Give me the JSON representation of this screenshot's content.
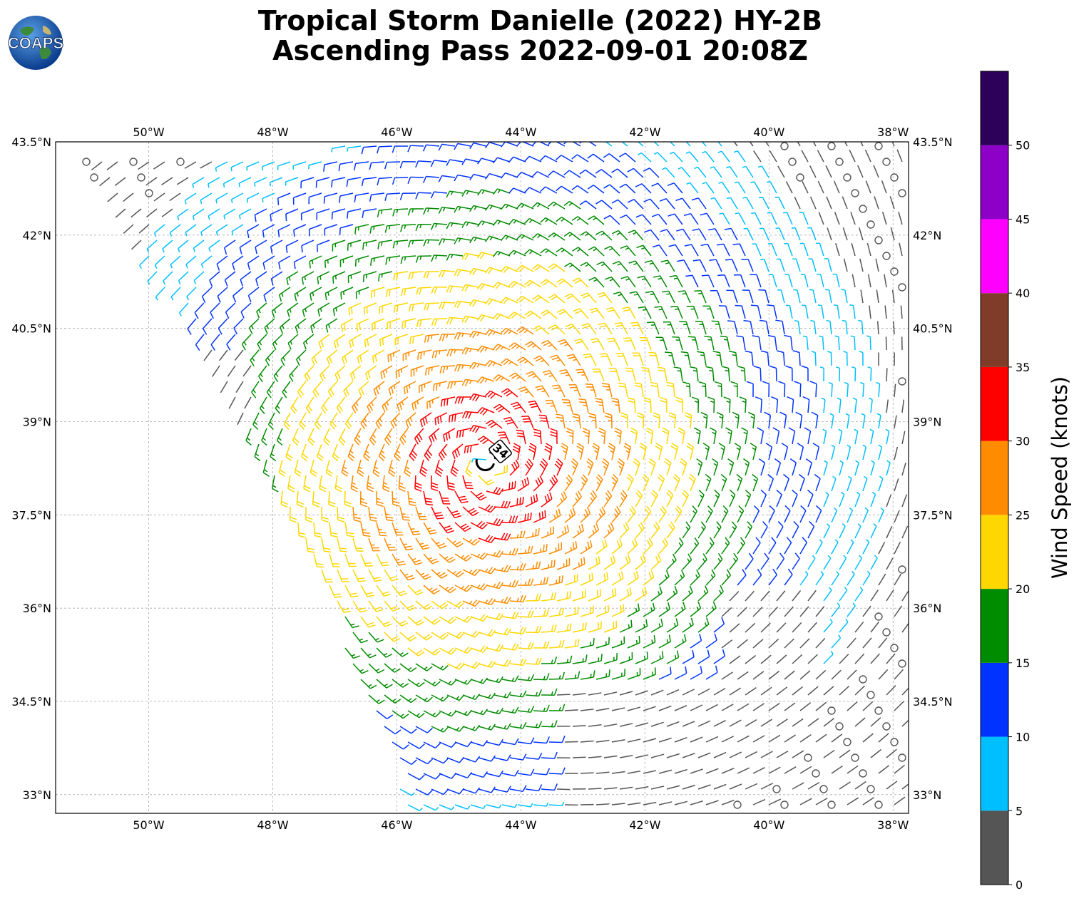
{
  "header": {
    "title_line1": "Tropical Storm Danielle (2022) HY-2B",
    "title_line2": "Ascending Pass 2022-09-01 20:08Z",
    "logo_text": "COAPS"
  },
  "map": {
    "lon_range": [
      -51.5,
      -37.75
    ],
    "lat_range": [
      32.7,
      43.5
    ],
    "lon_ticks": [
      "50°W",
      "48°W",
      "46°W",
      "44°W",
      "42°W",
      "40°W",
      "38°W"
    ],
    "lon_tick_values": [
      -50,
      -48,
      -46,
      -44,
      -42,
      -40,
      -38
    ],
    "lat_ticks": [
      "43.5°N",
      "42°N",
      "40.5°N",
      "39°N",
      "37.5°N",
      "36°N",
      "34.5°N",
      "33°N"
    ],
    "lat_tick_values": [
      43.5,
      42,
      40.5,
      39,
      37.5,
      36,
      34.5,
      33
    ],
    "gridlines": true,
    "storm_center_label": "34",
    "storm_center": {
      "lon": -44.55,
      "lat": 38.35
    },
    "pass_swath_corners": [
      [
        -51.2,
        43.4
      ],
      [
        -48.8,
        39.7
      ],
      [
        -46.0,
        33.5
      ],
      [
        -46.0,
        32.7
      ],
      [
        -37.75,
        32.7
      ],
      [
        -37.75,
        43.5
      ]
    ]
  },
  "colorbar": {
    "label": "Wind Speed (knots)",
    "ticks": [
      "0",
      "5",
      "10",
      "15",
      "20",
      "25",
      "30",
      "35",
      "40",
      "45",
      "50"
    ],
    "bins": [
      {
        "min": 0,
        "max": 5,
        "color": "#555555"
      },
      {
        "min": 5,
        "max": 10,
        "color": "#00bfff"
      },
      {
        "min": 10,
        "max": 15,
        "color": "#0033ff"
      },
      {
        "min": 15,
        "max": 20,
        "color": "#008c00"
      },
      {
        "min": 20,
        "max": 25,
        "color": "#ffd700"
      },
      {
        "min": 25,
        "max": 30,
        "color": "#ff8c00"
      },
      {
        "min": 30,
        "max": 35,
        "color": "#ff0000"
      },
      {
        "min": 35,
        "max": 40,
        "color": "#803c28"
      },
      {
        "min": 40,
        "max": 45,
        "color": "#ff00ff"
      },
      {
        "min": 45,
        "max": 50,
        "color": "#8c00c8"
      },
      {
        "min": 50,
        "max": 55,
        "color": "#2d005a"
      }
    ]
  }
}
